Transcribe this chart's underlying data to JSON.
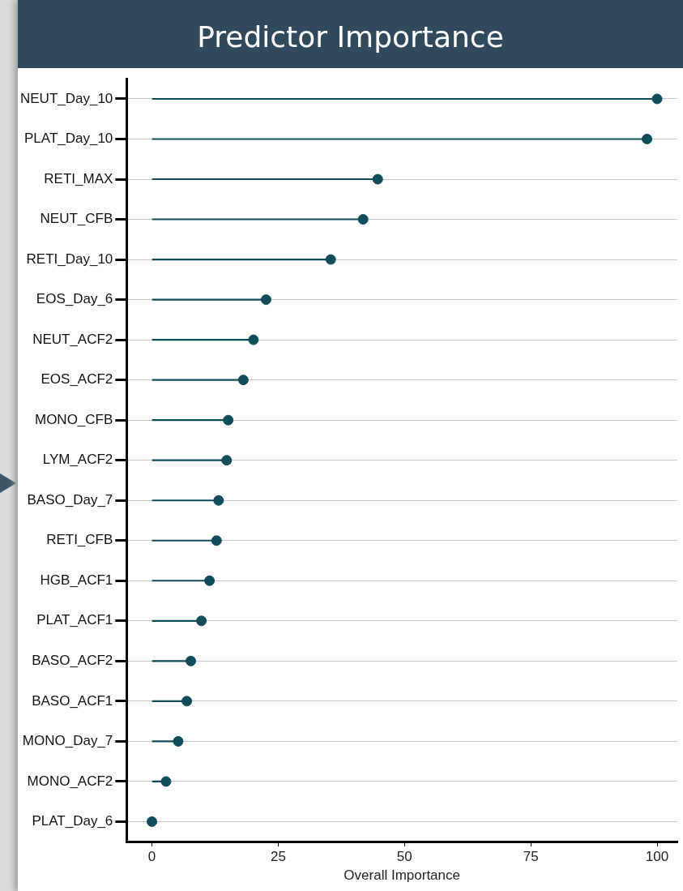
{
  "chart_data": {
    "type": "lollipop",
    "orientation": "horizontal",
    "title": "Predictor Importance",
    "xlabel": "Overall Importance",
    "categories": [
      "NEUT_Day_10",
      "PLAT_Day_10",
      "RETI_MAX",
      "NEUT_CFB",
      "RETI_Day_10",
      "EOS_Day_6",
      "NEUT_ACF2",
      "EOS_ACF2",
      "MONO_CFB",
      "LYM_ACF2",
      "BASO_Day_7",
      "RETI_CFB",
      "HGB_ACF1",
      "PLAT_ACF1",
      "BASO_ACF2",
      "BASO_ACF1",
      "MONO_Day_7",
      "MONO_ACF2",
      "PLAT_Day_6"
    ],
    "values": [
      100,
      98,
      44.7,
      41.8,
      35.4,
      22.6,
      20.1,
      18.1,
      15.1,
      14.8,
      13.2,
      12.8,
      11.4,
      9.8,
      7.7,
      6.9,
      5.2,
      2.8,
      0
    ],
    "color": "#0f4c5c",
    "xlim": [
      -5,
      104
    ],
    "xticks": [
      0,
      25,
      50,
      75,
      100
    ],
    "grid": "y",
    "marker": "circle"
  }
}
